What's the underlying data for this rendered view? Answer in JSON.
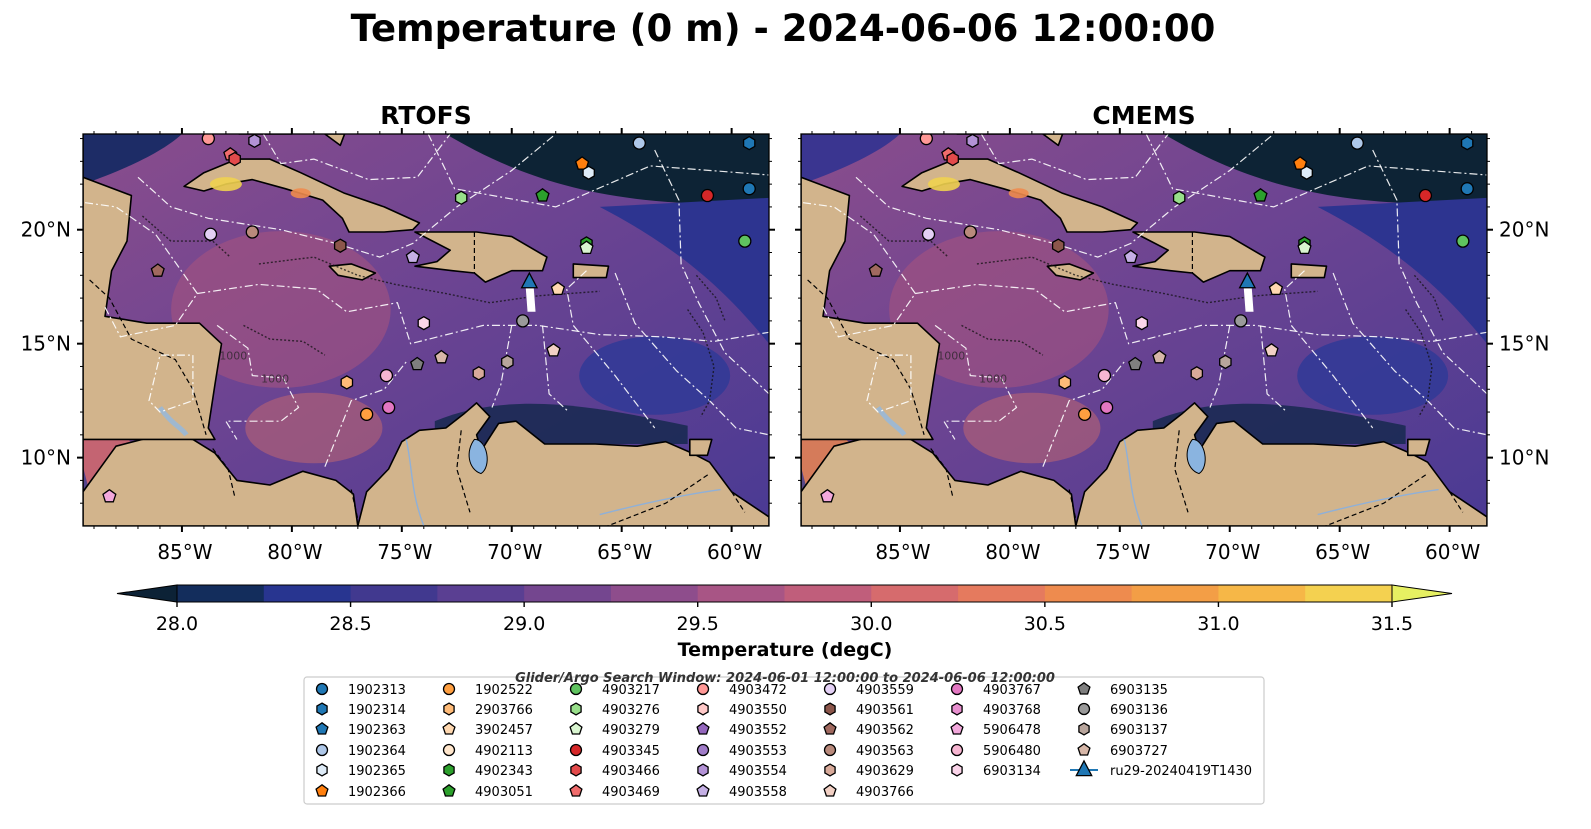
{
  "figure": {
    "title": "Temperature (0 m) - 2024-06-06 12:00:00"
  },
  "panels": [
    {
      "title": "RTOFS"
    },
    {
      "title": "CMEMS"
    }
  ],
  "map": {
    "lon_range": [
      -89.5,
      -58.3
    ],
    "lat_range": [
      7.0,
      24.2
    ],
    "lon_ticks": [
      {
        "value": -85,
        "label": "85°W"
      },
      {
        "value": -80,
        "label": "80°W"
      },
      {
        "value": -75,
        "label": "75°W"
      },
      {
        "value": -70,
        "label": "70°W"
      },
      {
        "value": -65,
        "label": "65°W"
      },
      {
        "value": -60,
        "label": "60°W"
      }
    ],
    "lat_ticks": [
      {
        "value": 20,
        "label": "20°N"
      },
      {
        "value": 15,
        "label": "15°N"
      },
      {
        "value": 10,
        "label": "10°N"
      }
    ],
    "land_color": "#d2b48c",
    "lake_color": "#8ab4e0",
    "boundary_style": "white dash-dot",
    "contour_labels": [
      "1000",
      "1000"
    ]
  },
  "colorbar": {
    "label": "Temperature (degC)",
    "ticks": [
      "28.0",
      "28.5",
      "29.0",
      "29.5",
      "30.0",
      "30.5",
      "31.0",
      "31.5"
    ],
    "min": 28.0,
    "max": 31.5,
    "step": 0.25,
    "extend": "both",
    "colors": [
      "#0c2236",
      "#132d5c",
      "#283590",
      "#41398f",
      "#5a3f92",
      "#74468f",
      "#8e4d8c",
      "#a85585",
      "#c05e7b",
      "#d66b6d",
      "#e57a5e",
      "#ee8b4e",
      "#f39e46",
      "#f6b747",
      "#f4d150",
      "#e6f062"
    ]
  },
  "legend": {
    "header": "Glider/Argo Search Window: 2024-06-01 12:00:00 to 2024-06-06 12:00:00",
    "columns": [
      [
        {
          "label": "1902313",
          "marker": "circle",
          "color": "#1f77b4"
        },
        {
          "label": "1902314",
          "marker": "hexagon",
          "color": "#1f77b4"
        },
        {
          "label": "1902363",
          "marker": "pentagon",
          "color": "#1f77b4"
        },
        {
          "label": "1902364",
          "marker": "circle",
          "color": "#aec7e8"
        },
        {
          "label": "1902365",
          "marker": "hexagon",
          "color": "#deebf7"
        },
        {
          "label": "1902366",
          "marker": "pentagon",
          "color": "#ff7f0e"
        }
      ],
      [
        {
          "label": "1902522",
          "marker": "circle",
          "color": "#ff9f40"
        },
        {
          "label": "2903766",
          "marker": "hexagon",
          "color": "#ffbb78"
        },
        {
          "label": "3902457",
          "marker": "pentagon",
          "color": "#ffd8b0"
        },
        {
          "label": "4902113",
          "marker": "circle",
          "color": "#ffe6cc"
        },
        {
          "label": "4902343",
          "marker": "hexagon",
          "color": "#2ca02c"
        },
        {
          "label": "4903051",
          "marker": "pentagon",
          "color": "#2ca02c"
        }
      ],
      [
        {
          "label": "4903217",
          "marker": "circle",
          "color": "#5fc35f"
        },
        {
          "label": "4903276",
          "marker": "hexagon",
          "color": "#98df8a"
        },
        {
          "label": "4903279",
          "marker": "pentagon",
          "color": "#d9f5d0"
        },
        {
          "label": "4903345",
          "marker": "circle",
          "color": "#d62728"
        },
        {
          "label": "4903466",
          "marker": "hexagon",
          "color": "#e34a4b"
        },
        {
          "label": "4903469",
          "marker": "pentagon",
          "color": "#f06c6c"
        }
      ],
      [
        {
          "label": "4903472",
          "marker": "circle",
          "color": "#ff9896"
        },
        {
          "label": "4903550",
          "marker": "hexagon",
          "color": "#ffc9c8"
        },
        {
          "label": "4903552",
          "marker": "pentagon",
          "color": "#9467bd"
        },
        {
          "label": "4903553",
          "marker": "circle",
          "color": "#a07cc8"
        },
        {
          "label": "4903554",
          "marker": "hexagon",
          "color": "#b392d6"
        },
        {
          "label": "4903558",
          "marker": "pentagon",
          "color": "#c5b0e5"
        }
      ],
      [
        {
          "label": "4903559",
          "marker": "circle",
          "color": "#e3d0f5"
        },
        {
          "label": "4903561",
          "marker": "hexagon",
          "color": "#8c564b"
        },
        {
          "label": "4903562",
          "marker": "pentagon",
          "color": "#a0695f"
        },
        {
          "label": "4903563",
          "marker": "circle",
          "color": "#b98a7c"
        },
        {
          "label": "4903629",
          "marker": "hexagon",
          "color": "#d8aa9a"
        },
        {
          "label": "4903766",
          "marker": "pentagon",
          "color": "#f2d0c4"
        }
      ],
      [
        {
          "label": "4903767",
          "marker": "circle",
          "color": "#e377c2"
        },
        {
          "label": "4903768",
          "marker": "hexagon",
          "color": "#e88fcf"
        },
        {
          "label": "5906478",
          "marker": "pentagon",
          "color": "#f3a8dc"
        },
        {
          "label": "5906480",
          "marker": "circle",
          "color": "#f7b6d2"
        },
        {
          "label": "6903134",
          "marker": "hexagon",
          "color": "#fbd5ea"
        }
      ],
      [
        {
          "label": "6903135",
          "marker": "pentagon",
          "color": "#7f7f7f"
        },
        {
          "label": "6903136",
          "marker": "circle",
          "color": "#9a9a9a"
        },
        {
          "label": "6903137",
          "marker": "hexagon",
          "color": "#b8a59c"
        },
        {
          "label": "6903727",
          "marker": "pentagon",
          "color": "#d7b7a8"
        },
        {
          "label": "ru29-20240419T1430",
          "marker": "glider",
          "color": "#1f77b4"
        }
      ]
    ]
  },
  "floats": [
    {
      "id": "1902313",
      "lon": -59.2,
      "lat": 21.8
    },
    {
      "id": "1902314",
      "lon": -59.2,
      "lat": 23.8
    },
    {
      "id": "1902364",
      "lon": -64.2,
      "lat": 23.8
    },
    {
      "id": "1902366",
      "lon": -66.8,
      "lat": 22.9
    },
    {
      "id": "1902365",
      "lon": -66.5,
      "lat": 22.5
    },
    {
      "id": "4903345",
      "lon": -61.1,
      "lat": 21.5
    },
    {
      "id": "4903051",
      "lon": -68.6,
      "lat": 21.5
    },
    {
      "id": "4903217",
      "lon": -59.4,
      "lat": 19.5
    },
    {
      "id": "4902343",
      "lon": -66.6,
      "lat": 19.4
    },
    {
      "id": "4903276",
      "lon": -72.3,
      "lat": 21.4
    },
    {
      "id": "4903279",
      "lon": -66.6,
      "lat": 19.2
    },
    {
      "id": "3902457",
      "lon": -67.9,
      "lat": 17.4
    },
    {
      "id": "4903558",
      "lon": -74.5,
      "lat": 18.8
    },
    {
      "id": "4903561",
      "lon": -77.8,
      "lat": 19.3
    },
    {
      "id": "4903563",
      "lon": -81.8,
      "lat": 19.9
    },
    {
      "id": "4903559",
      "lon": -83.7,
      "lat": 19.8
    },
    {
      "id": "4903562",
      "lon": -86.1,
      "lat": 18.2
    },
    {
      "id": "4903472",
      "lon": -83.8,
      "lat": 24.0
    },
    {
      "id": "4903469",
      "lon": -82.8,
      "lat": 23.3
    },
    {
      "id": "4903466",
      "lon": -82.6,
      "lat": 23.1
    },
    {
      "id": "4903554",
      "lon": -81.7,
      "lat": 23.9
    },
    {
      "id": "6903134",
      "lon": -74.0,
      "lat": 15.9
    },
    {
      "id": "6903136",
      "lon": -69.5,
      "lat": 16.0
    },
    {
      "id": "4903766",
      "lon": -68.1,
      "lat": 14.7
    },
    {
      "id": "6903727",
      "lon": -73.2,
      "lat": 14.4
    },
    {
      "id": "6903135",
      "lon": -74.3,
      "lat": 14.1
    },
    {
      "id": "6903137",
      "lon": -70.2,
      "lat": 14.2
    },
    {
      "id": "4903629",
      "lon": -71.5,
      "lat": 13.7
    },
    {
      "id": "5906480",
      "lon": -75.7,
      "lat": 13.6
    },
    {
      "id": "2903766",
      "lon": -77.5,
      "lat": 13.3
    },
    {
      "id": "4903767",
      "lon": -75.6,
      "lat": 12.2
    },
    {
      "id": "1902522",
      "lon": -76.6,
      "lat": 11.9
    },
    {
      "id": "5906478",
      "lon": -88.3,
      "lat": 8.3
    }
  ],
  "glider": {
    "id": "ru29-20240419T1430",
    "lon": -69.2,
    "lat": 17.7,
    "track_end_lat": 16.4
  }
}
